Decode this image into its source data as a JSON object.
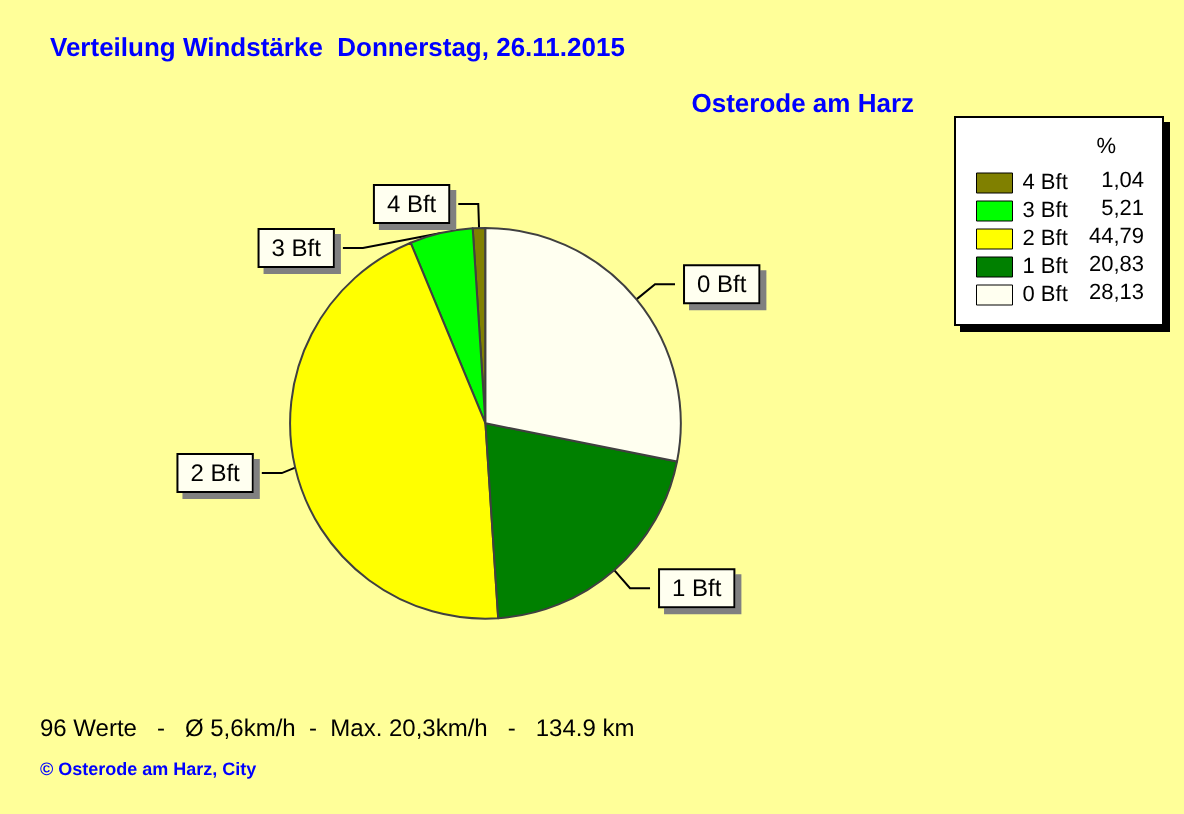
{
  "chart_data": {
    "type": "pie",
    "title": "Verteilung Windstärke  Donnerstag, 26.11.2015",
    "subtitle": "Osterode am Harz",
    "categories": [
      "4 Bft",
      "3 Bft",
      "2 Bft",
      "1 Bft",
      "0 Bft"
    ],
    "values": [
      1.04,
      5.21,
      44.79,
      20.83,
      28.13
    ],
    "value_labels": [
      "1,04",
      "5,21",
      "44,79",
      "20,83",
      "28,13"
    ],
    "colors": [
      "#808000",
      "#00ff00",
      "#ffff00",
      "#008000",
      "#fffff0"
    ],
    "legend": "top right",
    "legend_title": "%",
    "annotations": [
      "96 Werte   -   Ø 5,6km/h  -  Max. 20,3km/h   -   134.9 km",
      "© Osterode am Harz, City"
    ]
  }
}
